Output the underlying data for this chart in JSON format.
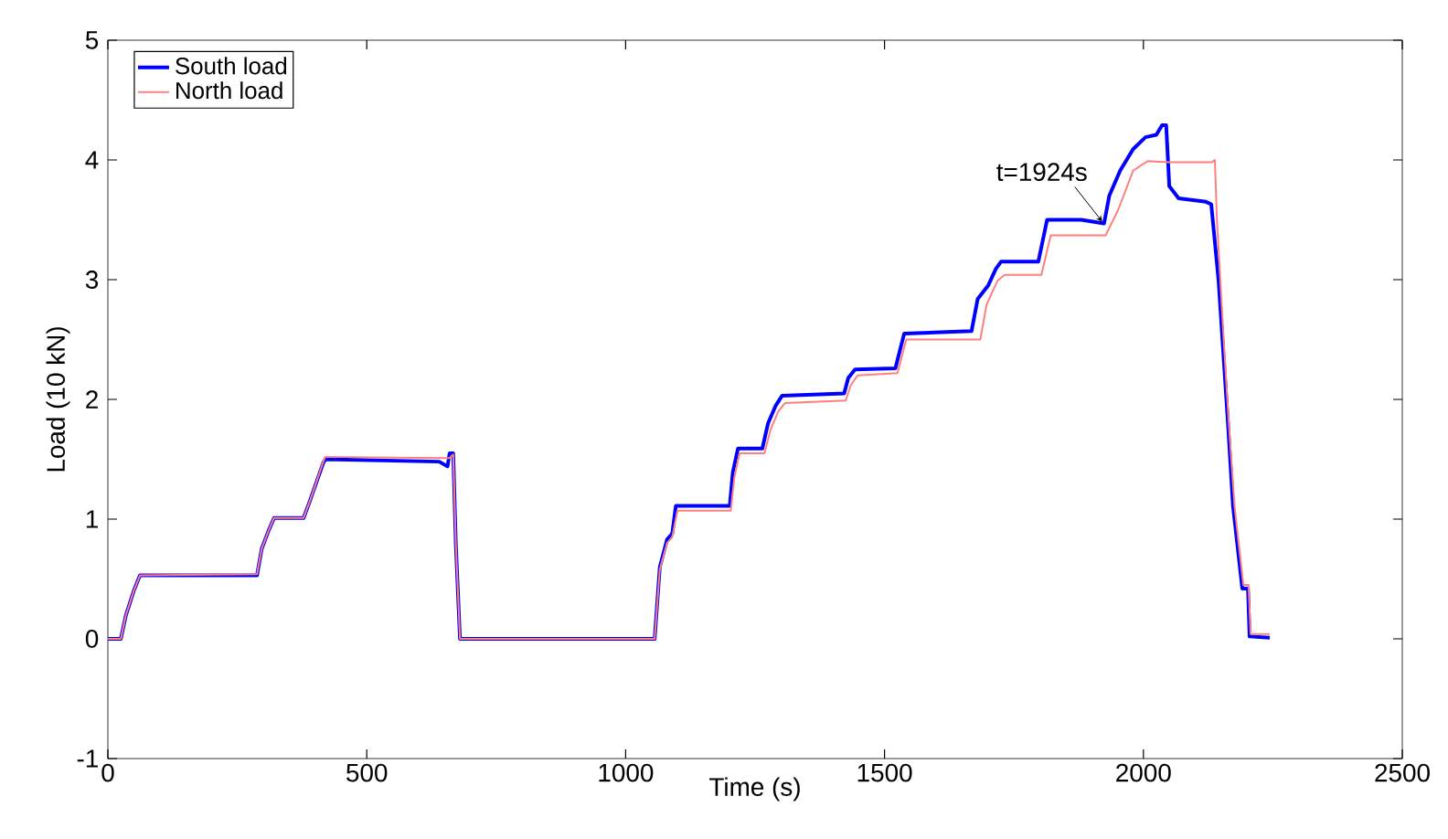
{
  "chart_data": {
    "type": "line",
    "xlabel": "Time (s)",
    "ylabel": "Load (10 kN)",
    "xlim": [
      0,
      2500
    ],
    "ylim": [
      -1,
      5
    ],
    "xticks": [
      0,
      500,
      1000,
      1500,
      2000,
      2500
    ],
    "yticks": [
      -1,
      0,
      1,
      2,
      3,
      4,
      5
    ],
    "legend": "top left",
    "annotations": [
      {
        "text": "t=1924s",
        "x": 1924,
        "y": 3.47
      }
    ],
    "series": [
      {
        "name": "South load",
        "color": "#0000ff",
        "x": [
          0,
          25,
          35,
          50,
          62,
          288,
          297,
          310,
          321,
          378,
          390,
          399,
          416,
          420,
          640,
          656,
          660,
          667,
          672,
          680,
          1000,
          1056,
          1066,
          1080,
          1090,
          1097,
          1201,
          1207,
          1217,
          1264,
          1275,
          1290,
          1302,
          1422,
          1430,
          1443,
          1521,
          1538,
          1668,
          1680,
          1700,
          1715,
          1725,
          1797,
          1814,
          1880,
          1924,
          1934,
          1955,
          1980,
          2004,
          2025,
          2036,
          2044,
          2050,
          2068,
          2121,
          2131,
          2145,
          2163,
          2173,
          2191,
          2202,
          2205,
          2244
        ],
        "values": [
          0,
          0,
          0.2,
          0.4,
          0.53,
          0.53,
          0.75,
          0.9,
          1.01,
          1.01,
          1.15,
          1.26,
          1.47,
          1.5,
          1.48,
          1.44,
          1.55,
          1.55,
          0.8,
          0,
          0,
          0,
          0.6,
          0.83,
          0.88,
          1.11,
          1.11,
          1.39,
          1.59,
          1.59,
          1.8,
          1.95,
          2.03,
          2.05,
          2.18,
          2.25,
          2.26,
          2.55,
          2.57,
          2.84,
          2.95,
          3.09,
          3.15,
          3.15,
          3.5,
          3.5,
          3.47,
          3.7,
          3.91,
          4.09,
          4.19,
          4.21,
          4.29,
          4.29,
          3.78,
          3.68,
          3.65,
          3.63,
          3.0,
          1.82,
          1.11,
          0.42,
          0.42,
          0.02,
          0.01
        ]
      },
      {
        "name": "North load",
        "color": "#ff7f7f",
        "x": [
          0,
          25,
          35,
          50,
          62,
          288,
          297,
          310,
          321,
          378,
          390,
          399,
          416,
          420,
          660,
          667,
          672,
          680,
          1056,
          1066,
          1080,
          1090,
          1100,
          1203,
          1210,
          1220,
          1268,
          1280,
          1295,
          1308,
          1425,
          1435,
          1448,
          1525,
          1542,
          1685,
          1697,
          1718,
          1732,
          1803,
          1821,
          1927,
          1951,
          1980,
          2008,
          2050,
          2132,
          2138,
          2142,
          2155,
          2165,
          2176,
          2193,
          2203,
          2207,
          2244
        ],
        "values": [
          0,
          0,
          0.2,
          0.4,
          0.53,
          0.54,
          0.75,
          0.9,
          1.01,
          1.01,
          1.15,
          1.26,
          1.48,
          1.52,
          1.51,
          1.54,
          0.8,
          0,
          0,
          0.58,
          0.8,
          0.85,
          1.07,
          1.07,
          1.35,
          1.55,
          1.55,
          1.75,
          1.9,
          1.97,
          1.99,
          2.12,
          2.2,
          2.22,
          2.5,
          2.5,
          2.79,
          2.99,
          3.04,
          3.04,
          3.37,
          3.37,
          3.58,
          3.91,
          3.99,
          3.98,
          3.98,
          4.0,
          3.5,
          2.5,
          1.8,
          1.11,
          0.45,
          0.45,
          0.04,
          0.04
        ]
      }
    ]
  }
}
